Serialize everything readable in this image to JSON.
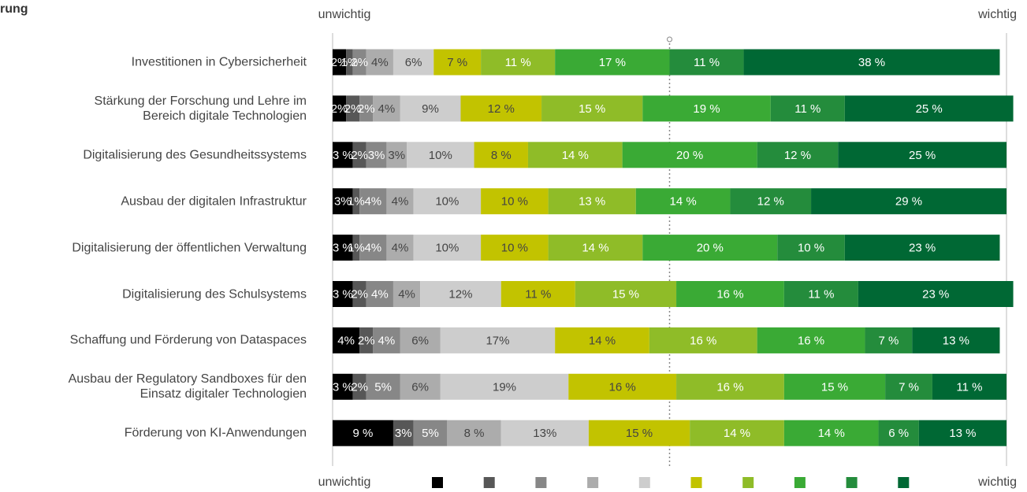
{
  "chart_data": {
    "type": "stacked_bar_horizontal",
    "title": "rung",
    "top_left": "unwichtig",
    "top_right": "wichtig",
    "legend_left": "unwichtig",
    "legend_right": "wichtig",
    "categories": [
      "Investitionen in Cybersicherheit",
      "Stärkung der Forschung und Lehre im\nBereich digitale Technologien",
      "Digitalisierung des Gesundheitssystems",
      "Ausbau der digitalen Infrastruktur",
      "Digitalisierung der öffentlichen Verwaltung",
      "Digitalisierung des Schulsystems",
      "Schaffung und Förderung von Dataspaces",
      "Ausbau der Regulatory Sandboxes für den\nEinsatz digitaler Technologien",
      "Förderung von KI-Anwendungen"
    ],
    "xlim": [
      0,
      100
    ],
    "midline": 50,
    "series": [
      {
        "color": "#000000",
        "values": [
          2,
          2,
          3,
          3,
          3,
          3,
          4,
          3,
          9
        ],
        "value_labels": [
          "2%",
          "2%",
          "3 %",
          "3%",
          "3 %",
          "3 %",
          "4%",
          "3 %",
          "9 %"
        ]
      },
      {
        "color": "#575757",
        "values": [
          1,
          2,
          2,
          1,
          1,
          2,
          2,
          2,
          3
        ],
        "value_labels": [
          "1%",
          "2%",
          "2%",
          "1%",
          "1%",
          "2%",
          "2%",
          "2%",
          "3%"
        ]
      },
      {
        "color": "#878787",
        "values": [
          2,
          2,
          3,
          4,
          4,
          4,
          4,
          5,
          5
        ],
        "value_labels": [
          "2%",
          "2%",
          "3%",
          "4%",
          "4%",
          "4%",
          "4%",
          "5%",
          "5%"
        ]
      },
      {
        "color": "#acacac",
        "values": [
          4,
          4,
          3,
          4,
          4,
          4,
          6,
          6,
          8
        ],
        "value_labels": [
          "4%",
          "4%",
          "3%",
          "4%",
          "4%",
          "4%",
          "6%",
          "6%",
          "8 %"
        ]
      },
      {
        "color": "#cdcdcd",
        "values": [
          6,
          9,
          10,
          10,
          10,
          12,
          17,
          19,
          13
        ],
        "value_labels": [
          "6%",
          "9%",
          "10%",
          "10%",
          "10%",
          "12%",
          "17%",
          "19%",
          "13%"
        ]
      },
      {
        "color": "#c2c300",
        "values": [
          7,
          12,
          8,
          10,
          10,
          11,
          14,
          16,
          15
        ],
        "value_labels": [
          "7 %",
          "12 %",
          "8 %",
          "10 %",
          "10 %",
          "11 %",
          "14 %",
          "16 %",
          "15 %"
        ]
      },
      {
        "color": "#8fbc28",
        "values": [
          11,
          15,
          14,
          13,
          14,
          15,
          16,
          16,
          14
        ],
        "value_labels": [
          "11 %",
          "15 %",
          "14 %",
          "13 %",
          "14 %",
          "15 %",
          "16 %",
          "16 %",
          "14 %"
        ]
      },
      {
        "color": "#3aaa35",
        "values": [
          17,
          19,
          20,
          14,
          20,
          16,
          16,
          15,
          14
        ],
        "value_labels": [
          "17 %",
          "19 %",
          "20 %",
          "14 %",
          "20 %",
          "16 %",
          "16 %",
          "15 %",
          "14 %"
        ]
      },
      {
        "color": "#248c3c",
        "values": [
          11,
          11,
          12,
          12,
          10,
          11,
          7,
          7,
          6
        ],
        "value_labels": [
          "11 %",
          "11 %",
          "12 %",
          "12 %",
          "10 %",
          "11 %",
          "7 %",
          "7 %",
          "6 %"
        ]
      },
      {
        "color": "#006834",
        "values": [
          38,
          25,
          25,
          29,
          23,
          23,
          13,
          11,
          13
        ],
        "value_labels": [
          "38 %",
          "25 %",
          "25 %",
          "29 %",
          "23 %",
          "23 %",
          "13 %",
          "11 %",
          "13 %"
        ]
      }
    ]
  }
}
